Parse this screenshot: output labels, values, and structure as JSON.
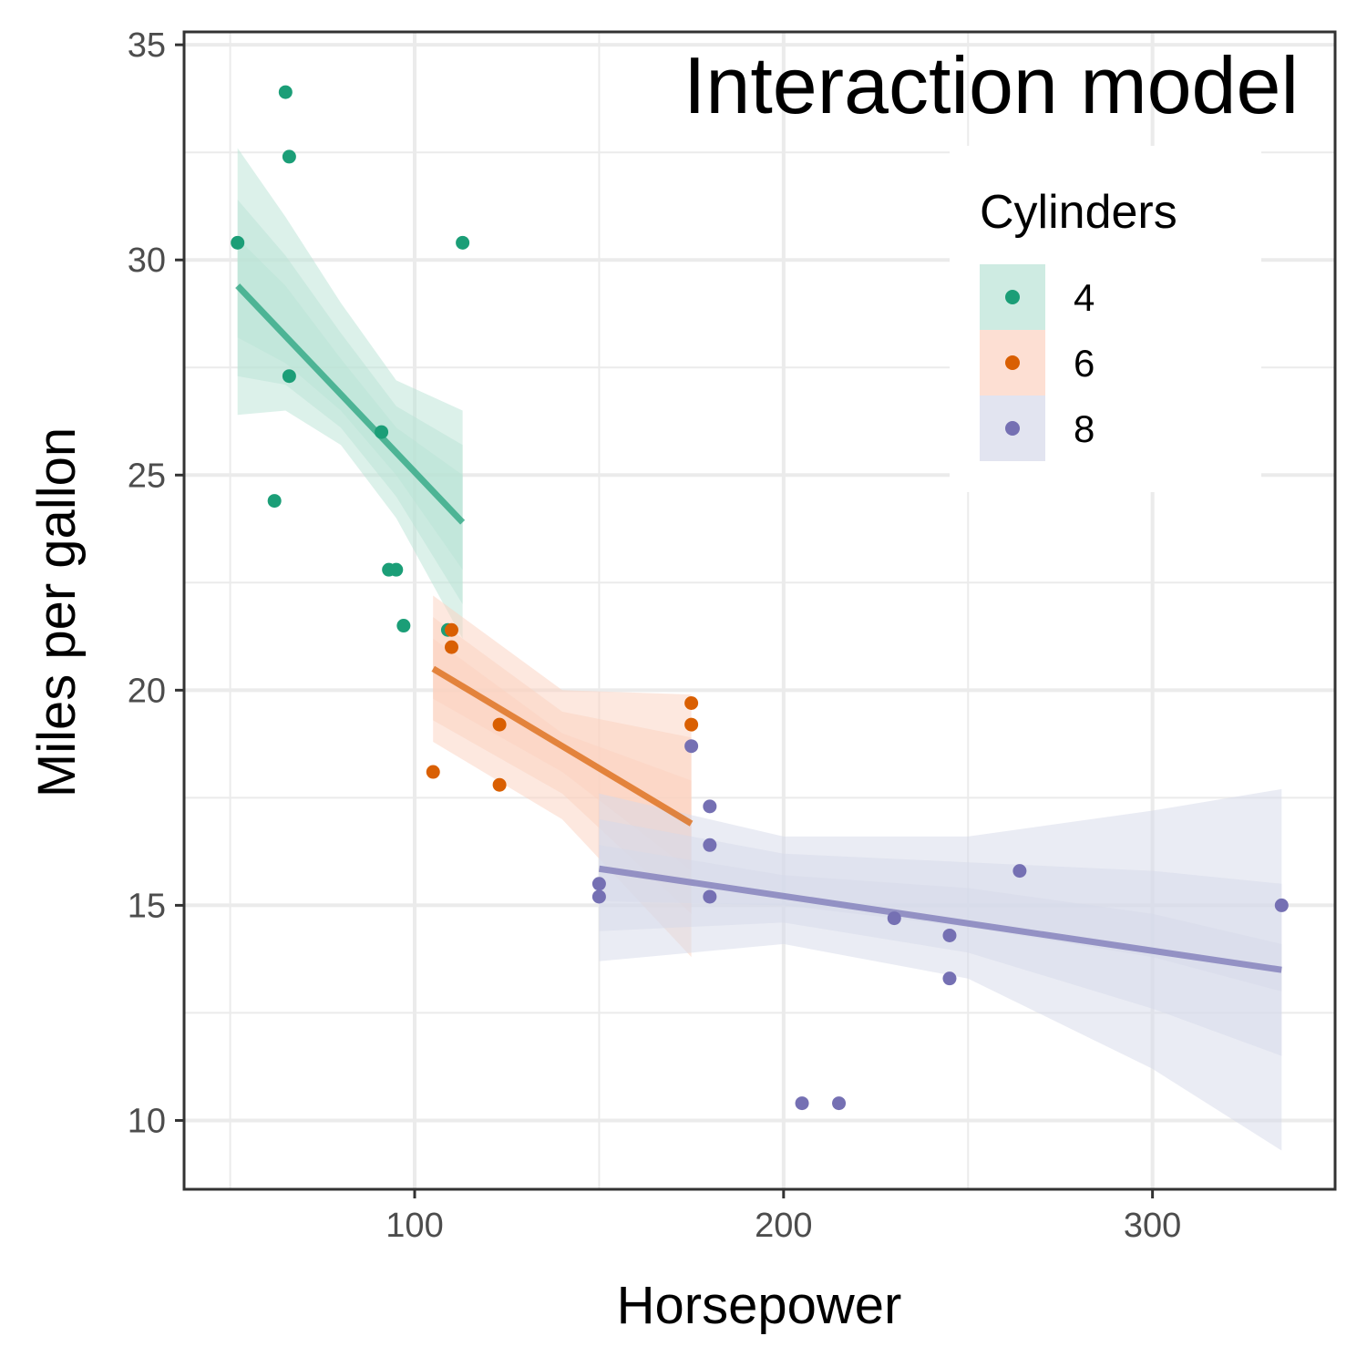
{
  "chart_data": {
    "type": "scatter",
    "title": "Interaction model",
    "xlabel": "Horsepower",
    "ylabel": "Miles per gallon",
    "xlim": [
      37.5,
      349.5
    ],
    "ylim": [
      8.4,
      35.3
    ],
    "x_ticks": [
      100,
      200,
      300
    ],
    "y_ticks": [
      10,
      15,
      20,
      25,
      30,
      35
    ],
    "x_minor_ticks": [
      50,
      150,
      250
    ],
    "y_minor_ticks": [
      12.5,
      17.5,
      22.5,
      27.5,
      32.5
    ],
    "grid": true,
    "legend": {
      "title": "Cylinders",
      "placement": "top-right"
    },
    "series": [
      {
        "name": "4",
        "color": "#1b9e77",
        "fill": "#b9e3d5",
        "points": [
          [
            52,
            30.4
          ],
          [
            62,
            24.4
          ],
          [
            65,
            33.9
          ],
          [
            66,
            32.4
          ],
          [
            66,
            27.3
          ],
          [
            91,
            26.0
          ],
          [
            93,
            22.8
          ],
          [
            95,
            22.8
          ],
          [
            97,
            21.5
          ],
          [
            109,
            21.4
          ],
          [
            113,
            30.4
          ]
        ],
        "fit": {
          "x": [
            52,
            113
          ],
          "y": [
            29.4,
            23.9
          ]
        },
        "bands": [
          {
            "x": [
              52,
              65,
              80,
              95,
              113
            ],
            "lower": [
              26.4,
              26.5,
              25.7,
              24.0,
              21.2
            ],
            "upper": [
              32.6,
              31.0,
              29.0,
              27.2,
              26.5
            ]
          },
          {
            "x": [
              52,
              65,
              80,
              95,
              113
            ],
            "lower": [
              27.3,
              27.1,
              26.1,
              24.5,
              22.0
            ],
            "upper": [
              31.4,
              30.1,
              28.3,
              26.6,
              25.7
            ]
          },
          {
            "x": [
              52,
              65,
              80,
              95,
              113
            ],
            "lower": [
              28.2,
              27.6,
              26.5,
              25.0,
              22.8
            ],
            "upper": [
              30.5,
              29.4,
              27.7,
              26.1,
              25.0
            ]
          }
        ]
      },
      {
        "name": "6",
        "color": "#d95f02",
        "fill": "#fcd2c0",
        "points": [
          [
            105,
            18.1
          ],
          [
            110,
            21.0
          ],
          [
            110,
            21.4
          ],
          [
            123,
            19.2
          ],
          [
            123,
            17.8
          ],
          [
            175,
            19.7
          ],
          [
            175,
            19.2
          ]
        ],
        "fit": {
          "x": [
            105,
            175
          ],
          "y": [
            20.5,
            16.9
          ]
        },
        "bands": [
          {
            "x": [
              105,
              140,
              175
            ],
            "lower": [
              18.8,
              17.0,
              13.8
            ],
            "upper": [
              22.2,
              20.0,
              19.9
            ]
          },
          {
            "x": [
              105,
              140,
              175
            ],
            "lower": [
              19.3,
              17.6,
              14.8
            ],
            "upper": [
              21.7,
              19.5,
              18.9
            ]
          },
          {
            "x": [
              105,
              140,
              175
            ],
            "lower": [
              19.8,
              18.1,
              15.8
            ],
            "upper": [
              21.2,
              19.0,
              17.9
            ]
          }
        ]
      },
      {
        "name": "8",
        "color": "#7570b3",
        "fill": "#d5d9ea",
        "points": [
          [
            150,
            15.5
          ],
          [
            150,
            15.2
          ],
          [
            175,
            18.7
          ],
          [
            180,
            17.3
          ],
          [
            180,
            16.4
          ],
          [
            180,
            15.2
          ],
          [
            205,
            10.4
          ],
          [
            215,
            10.4
          ],
          [
            230,
            14.7
          ],
          [
            245,
            14.3
          ],
          [
            245,
            13.3
          ],
          [
            264,
            15.8
          ],
          [
            335,
            15.0
          ]
        ],
        "fit": {
          "x": [
            150,
            335
          ],
          "y": [
            15.85,
            13.5
          ]
        },
        "bands": [
          {
            "x": [
              150,
              200,
              250,
              300,
              335
            ],
            "lower": [
              13.7,
              14.1,
              13.3,
              11.2,
              9.3
            ],
            "upper": [
              17.6,
              16.6,
              16.6,
              17.2,
              17.7
            ]
          },
          {
            "x": [
              150,
              200,
              250,
              300,
              335
            ],
            "lower": [
              14.4,
              14.6,
              13.9,
              12.6,
              11.5
            ],
            "upper": [
              17.0,
              16.2,
              16.0,
              15.8,
              15.5
            ]
          },
          {
            "x": [
              150,
              200,
              250,
              300,
              335
            ],
            "lower": [
              15.1,
              15.0,
              14.5,
              13.8,
              13.0
            ],
            "upper": [
              16.4,
              15.7,
              15.4,
              14.8,
              14.1
            ]
          }
        ]
      }
    ]
  }
}
